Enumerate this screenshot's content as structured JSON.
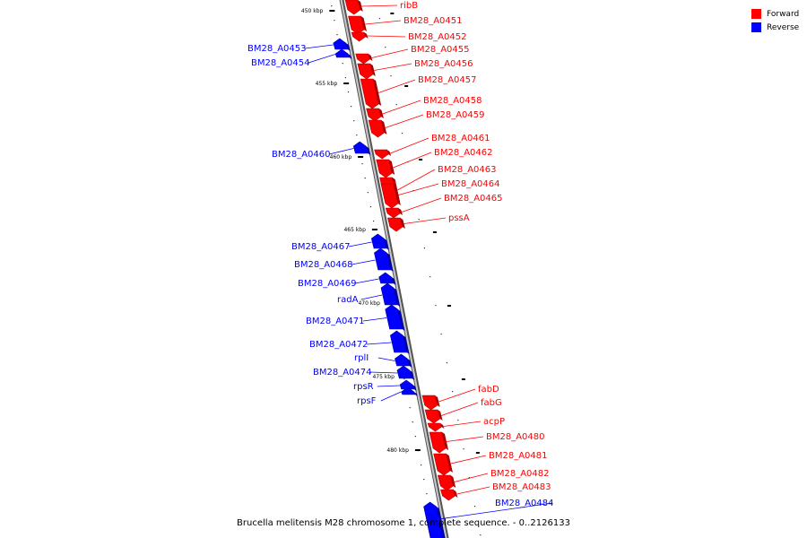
{
  "title": "Brucella melitensis M28 chromosome 1, complete sequence. - 0..2126133",
  "legend": [
    {
      "label": "Forward",
      "color": "#ff0000"
    },
    {
      "label": "Reverse",
      "color": "#0000ff"
    }
  ],
  "colors": {
    "forward": "#ff0000",
    "reverse": "#0000ff",
    "backbone": "#999999"
  },
  "ticks": [
    {
      "label": "450 kbp",
      "kbp": 450
    },
    {
      "label": "455 kbp",
      "kbp": 455
    },
    {
      "label": "460 kbp",
      "kbp": 460
    },
    {
      "label": "465 kbp",
      "kbp": 465
    },
    {
      "label": "470 kbp",
      "kbp": 470
    },
    {
      "label": "475 kbp",
      "kbp": 475
    },
    {
      "label": "480 kbp",
      "kbp": 480
    }
  ],
  "features": [
    {
      "name": "ribB",
      "strand": "forward"
    },
    {
      "name": "BM28_A0451",
      "strand": "forward"
    },
    {
      "name": "BM28_A0452",
      "strand": "forward"
    },
    {
      "name": "BM28_A0453",
      "strand": "reverse"
    },
    {
      "name": "BM28_A0454",
      "strand": "reverse"
    },
    {
      "name": "BM28_A0455",
      "strand": "forward"
    },
    {
      "name": "BM28_A0456",
      "strand": "forward"
    },
    {
      "name": "BM28_A0457",
      "strand": "forward"
    },
    {
      "name": "BM28_A0458",
      "strand": "forward"
    },
    {
      "name": "BM28_A0459",
      "strand": "forward"
    },
    {
      "name": "BM28_A0460",
      "strand": "reverse"
    },
    {
      "name": "BM28_A0461",
      "strand": "forward"
    },
    {
      "name": "BM28_A0462",
      "strand": "forward"
    },
    {
      "name": "BM28_A0463",
      "strand": "forward"
    },
    {
      "name": "BM28_A0464",
      "strand": "forward"
    },
    {
      "name": "BM28_A0465",
      "strand": "forward"
    },
    {
      "name": "pssA",
      "strand": "forward"
    },
    {
      "name": "BM28_A0467",
      "strand": "reverse"
    },
    {
      "name": "BM28_A0468",
      "strand": "reverse"
    },
    {
      "name": "BM28_A0469",
      "strand": "reverse"
    },
    {
      "name": "radA",
      "strand": "reverse"
    },
    {
      "name": "BM28_A0471",
      "strand": "reverse"
    },
    {
      "name": "BM28_A0472",
      "strand": "reverse"
    },
    {
      "name": "rplI",
      "strand": "reverse"
    },
    {
      "name": "BM28_A0474",
      "strand": "reverse"
    },
    {
      "name": "rpsR",
      "strand": "reverse"
    },
    {
      "name": "rpsF",
      "strand": "reverse"
    },
    {
      "name": "fabD",
      "strand": "forward"
    },
    {
      "name": "fabG",
      "strand": "forward"
    },
    {
      "name": "acpP",
      "strand": "forward"
    },
    {
      "name": "BM28_A0480",
      "strand": "forward"
    },
    {
      "name": "BM28_A0481",
      "strand": "forward"
    },
    {
      "name": "BM28_A0482",
      "strand": "forward"
    },
    {
      "name": "BM28_A0483",
      "strand": "forward"
    },
    {
      "name": "BM28_A0484",
      "strand": "reverse"
    }
  ]
}
